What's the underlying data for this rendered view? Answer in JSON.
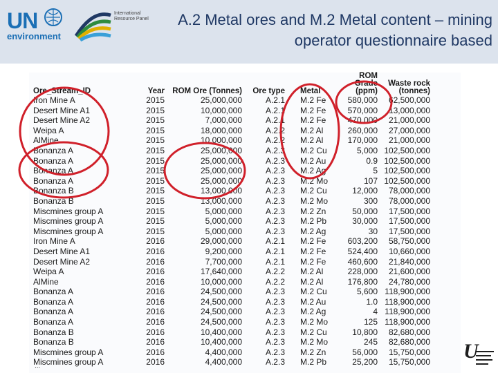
{
  "header": {
    "un_label": "UN",
    "un_sub": "environment",
    "irp_text": "International Resource Panel",
    "title": "A.2  Metal ores and M.2 Metal content – mining operator questionnaire based"
  },
  "table": {
    "headers": [
      "Ore_Stream_ID",
      "Year",
      "ROM Ore (Tonnes)",
      "Ore type",
      "Metal",
      "ROM Grade (ppm)",
      "Waste rock (tonnes)"
    ],
    "rows": [
      [
        "Iron Mine A",
        "2015",
        "25,000,000",
        "A.2.1",
        "M.2 Fe",
        "580,000",
        "62,500,000"
      ],
      [
        "Desert Mine A1",
        "2015",
        "10,000,000",
        "A.2.1",
        "M.2 Fe",
        "570,000",
        "13,000,000"
      ],
      [
        "Desert Mine A2",
        "2015",
        "7,000,000",
        "A.2.1",
        "M.2 Fe",
        "470,000",
        "21,000,000"
      ],
      [
        "Weipa A",
        "2015",
        "18,000,000",
        "A.2.2",
        "M.2 Al",
        "260,000",
        "27,000,000"
      ],
      [
        "AlMine",
        "2015",
        "10,000,000",
        "A.2.2",
        "M.2 Al",
        "170,000",
        "21,000,000"
      ],
      [
        "Bonanza A",
        "2015",
        "25,000,000",
        "A.2.3",
        "M.2 Cu",
        "5,000",
        "102,500,000"
      ],
      [
        "Bonanza A",
        "2015",
        "25,000,000",
        "A.2.3",
        "M.2 Au",
        "0.9",
        "102,500,000"
      ],
      [
        "Bonanza A",
        "2015",
        "25,000,000",
        "A.2.3",
        "M.2 Ag",
        "5",
        "102,500,000"
      ],
      [
        "Bonanza A",
        "2015",
        "25,000,000",
        "A.2.3",
        "M.2 Mo",
        "107",
        "102,500,000"
      ],
      [
        "Bonanza B",
        "2015",
        "13,000,000",
        "A.2.3",
        "M.2 Cu",
        "12,000",
        "78,000,000"
      ],
      [
        "Bonanza B",
        "2015",
        "13,000,000",
        "A.2.3",
        "M.2 Mo",
        "300",
        "78,000,000"
      ],
      [
        "Miscmines group A",
        "2015",
        "5,000,000",
        "A.2.3",
        "M.2 Zn",
        "50,000",
        "17,500,000"
      ],
      [
        "Miscmines group A",
        "2015",
        "5,000,000",
        "A.2.3",
        "M.2 Pb",
        "30,000",
        "17,500,000"
      ],
      [
        "Miscmines group A",
        "2015",
        "5,000,000",
        "A.2.3",
        "M.2 Ag",
        "30",
        "17,500,000"
      ],
      [
        "Iron Mine A",
        "2016",
        "29,000,000",
        "A.2.1",
        "M.2 Fe",
        "603,200",
        "58,750,000"
      ],
      [
        "Desert Mine A1",
        "2016",
        "9,200,000",
        "A.2.1",
        "M.2 Fe",
        "524,400",
        "10,660,000"
      ],
      [
        "Desert Mine A2",
        "2016",
        "7,700,000",
        "A.2.1",
        "M.2 Fe",
        "460,600",
        "21,840,000"
      ],
      [
        "Weipa A",
        "2016",
        "17,640,000",
        "A.2.2",
        "M.2 Al",
        "228,000",
        "21,600,000"
      ],
      [
        "AlMine",
        "2016",
        "10,000,000",
        "A.2.2",
        "M.2 Al",
        "176,800",
        "24,780,000"
      ],
      [
        "Bonanza A",
        "2016",
        "24,500,000",
        "A.2.3",
        "M.2 Cu",
        "5,600",
        "118,900,000"
      ],
      [
        "Bonanza A",
        "2016",
        "24,500,000",
        "A.2.3",
        "M.2 Au",
        "1.0",
        "118,900,000"
      ],
      [
        "Bonanza A",
        "2016",
        "24,500,000",
        "A.2.3",
        "M.2 Ag",
        "4",
        "118,900,000"
      ],
      [
        "Bonanza A",
        "2016",
        "24,500,000",
        "A.2.3",
        "M.2 Mo",
        "125",
        "118,900,000"
      ],
      [
        "Bonanza B",
        "2016",
        "10,400,000",
        "A.2.3",
        "M.2 Cu",
        "10,800",
        "82,680,000"
      ],
      [
        "Bonanza B",
        "2016",
        "10,400,000",
        "A.2.3",
        "M.2 Mo",
        "245",
        "82,680,000"
      ],
      [
        "Miscmines group A",
        "2016",
        "4,400,000",
        "A.2.3",
        "M.2 Zn",
        "56,000",
        "15,750,000"
      ],
      [
        "Miscmines group A",
        "2016",
        "4,400,000",
        "A.2.3",
        "M.2 Pb",
        "25,200",
        "15,750,000"
      ]
    ],
    "ellipsis": "..."
  },
  "colors": {
    "header_bg": "#dce3ed",
    "title": "#1f3864",
    "un_blue": "#1b6fb5",
    "circle_red": "#d0202a"
  }
}
